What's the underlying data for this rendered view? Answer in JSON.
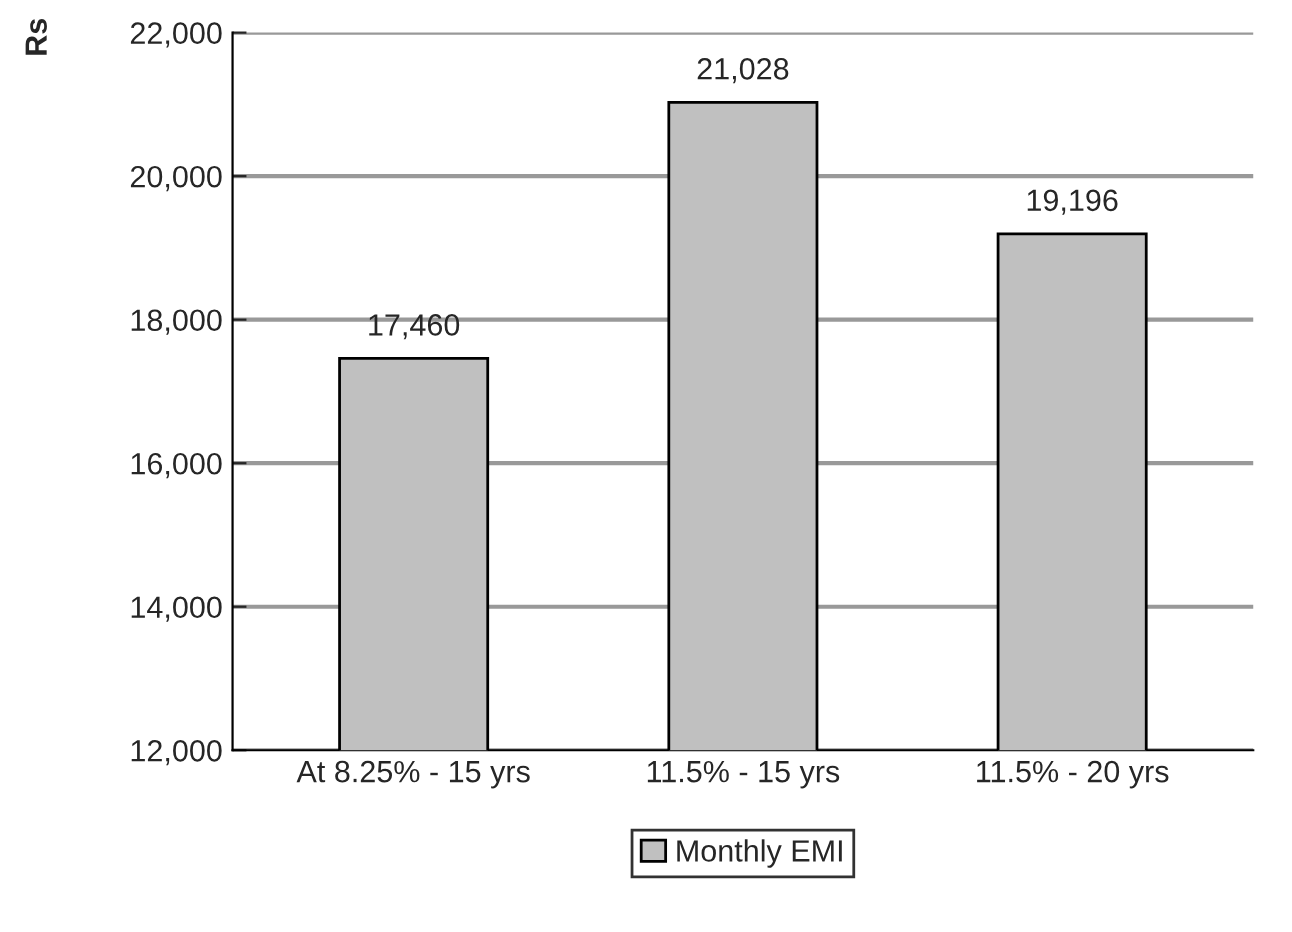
{
  "chart_data": {
    "type": "bar",
    "ylabel": "Rs",
    "categories": [
      "At 8.25% - 15 yrs",
      "11.5% - 15 yrs",
      "11.5% - 20 yrs"
    ],
    "series": [
      {
        "name": "Monthly EMI",
        "color": "#c0c0c0",
        "values": [
          17460,
          21028,
          19196
        ],
        "value_labels": [
          "17,460",
          "21,028",
          "19,196"
        ]
      }
    ],
    "ylim": [
      12000,
      22000
    ],
    "yticks": [
      {
        "value": 12000,
        "label": "12,000"
      },
      {
        "value": 14000,
        "label": "14,000"
      },
      {
        "value": 16000,
        "label": "16,000"
      },
      {
        "value": 18000,
        "label": "18,000"
      },
      {
        "value": 20000,
        "label": "20,000"
      },
      {
        "value": 22000,
        "label": "22,000"
      }
    ],
    "grid": "y",
    "legend": "bottom"
  }
}
